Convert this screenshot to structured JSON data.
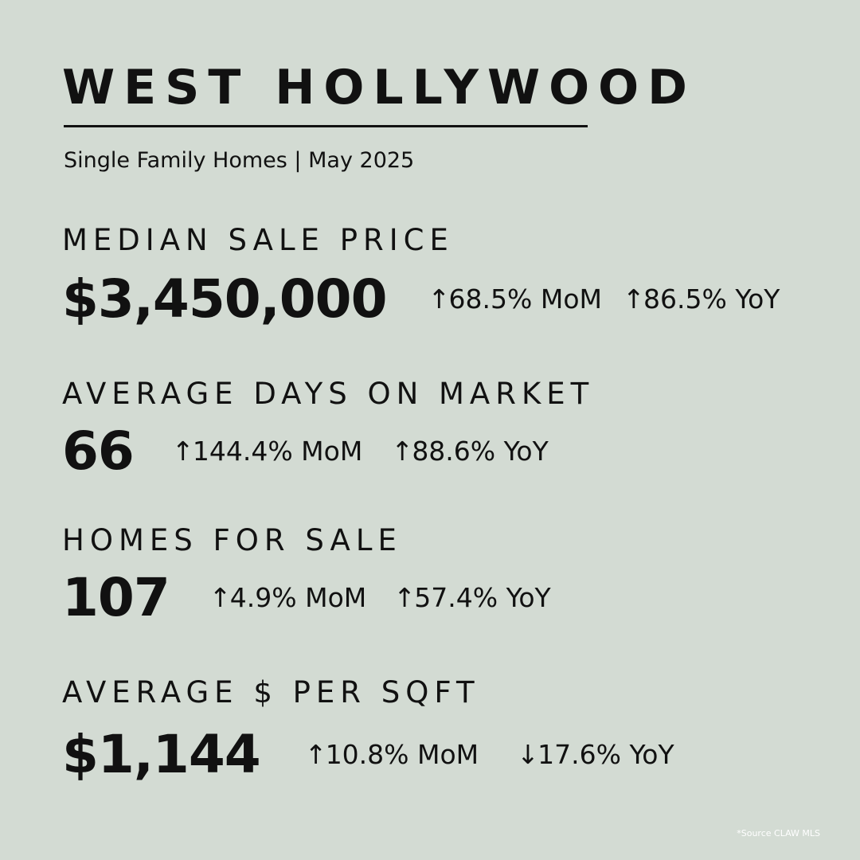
{
  "header": {
    "title": "WEST HOLLYWOOD",
    "subtitle": "Single Family Homes | May 2025"
  },
  "metrics": [
    {
      "label": "MEDIAN SALE PRICE",
      "value": "$3,450,000",
      "mom": {
        "arrow": "↑",
        "text": "68.5% MoM"
      },
      "yoy": {
        "arrow": "↑",
        "text": "86.5% YoY"
      }
    },
    {
      "label": "AVERAGE DAYS ON MARKET",
      "value": "66",
      "mom": {
        "arrow": "↑",
        "text": "144.4% MoM"
      },
      "yoy": {
        "arrow": "↑",
        "text": "88.6% YoY"
      }
    },
    {
      "label": "HOMES FOR SALE",
      "value": "107",
      "mom": {
        "arrow": "↑",
        "text": "4.9% MoM"
      },
      "yoy": {
        "arrow": "↑",
        "text": "57.4% YoY"
      }
    },
    {
      "label": "AVERAGE $ PER SQFT",
      "value": "$1,144",
      "mom": {
        "arrow": "↑",
        "text": "10.8% MoM"
      },
      "yoy": {
        "arrow": "↓",
        "text": "17.6% YoY"
      }
    }
  ],
  "footer": {
    "source": "*Source CLAW MLS"
  },
  "colors": {
    "background": "#d3dbd3",
    "text": "#111111",
    "source_text": "#ffffff"
  }
}
